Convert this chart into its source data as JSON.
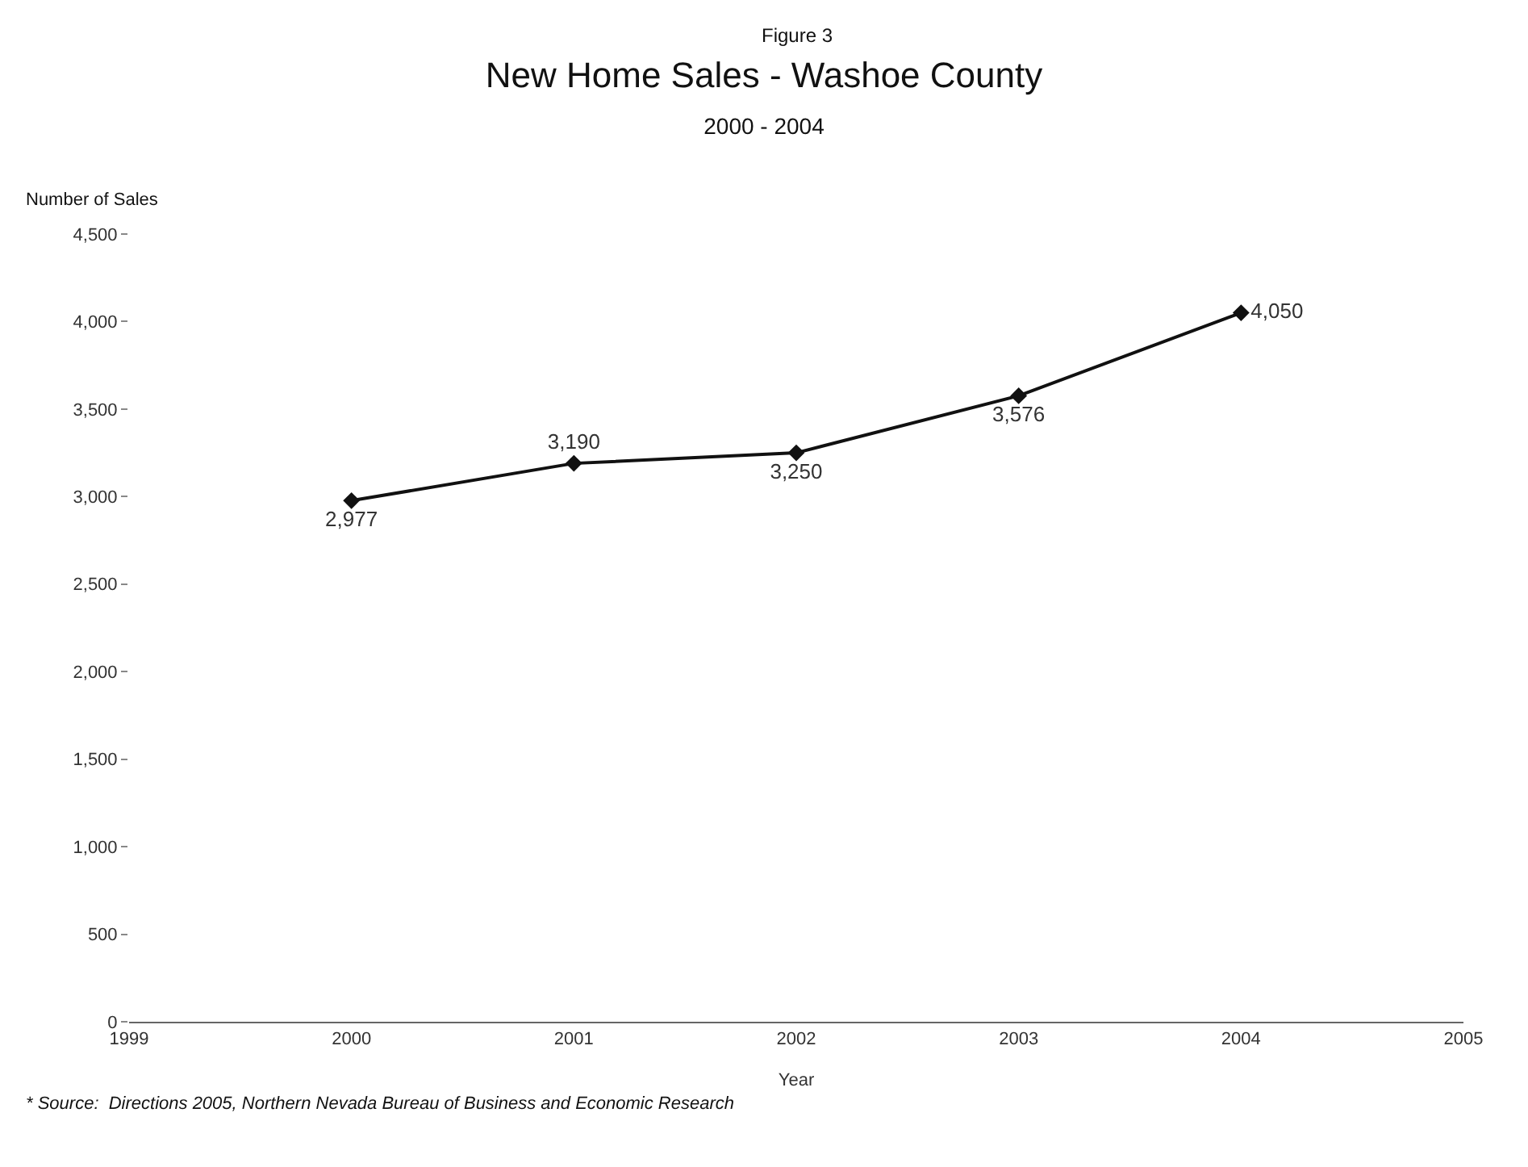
{
  "chart_data": {
    "type": "line",
    "title": "New Home Sales - Washoe County",
    "subtitle": "2000 - 2004",
    "xlabel": "Year",
    "ylabel": "Number of Sales",
    "annotations": [
      "Figure 3",
      "* Source:  Directions 2005, Northern Nevada Bureau of Business and Economic Research"
    ],
    "x": [
      2000,
      2001,
      2002,
      2003,
      2004
    ],
    "series": [
      {
        "color": "#111111",
        "values": [
          2977,
          3190,
          3250,
          3576,
          4050
        ]
      }
    ],
    "xlim": [
      1999,
      2005
    ],
    "xticks": [
      1999,
      2000,
      2001,
      2002,
      2003,
      2004,
      2005
    ],
    "ylim": [
      0,
      4500
    ],
    "yticks": [
      0,
      500,
      {
        "value": 1000,
        "label": "1,000"
      },
      {
        "value": 1500,
        "label": "1,500"
      },
      {
        "value": 2000,
        "label": "2,000"
      },
      {
        "value": 2500,
        "label": "2,500"
      },
      {
        "value": 3000,
        "label": "3,000"
      },
      {
        "value": 3500,
        "label": "3,500"
      },
      {
        "value": 4000,
        "label": "4,000"
      },
      {
        "value": 4500,
        "label": "4,500"
      }
    ],
    "value_labels": [
      "2,977",
      "3,190",
      "3,250",
      "3,576",
      "4,050"
    ],
    "marker": "diamond",
    "line_style": "solid"
  }
}
